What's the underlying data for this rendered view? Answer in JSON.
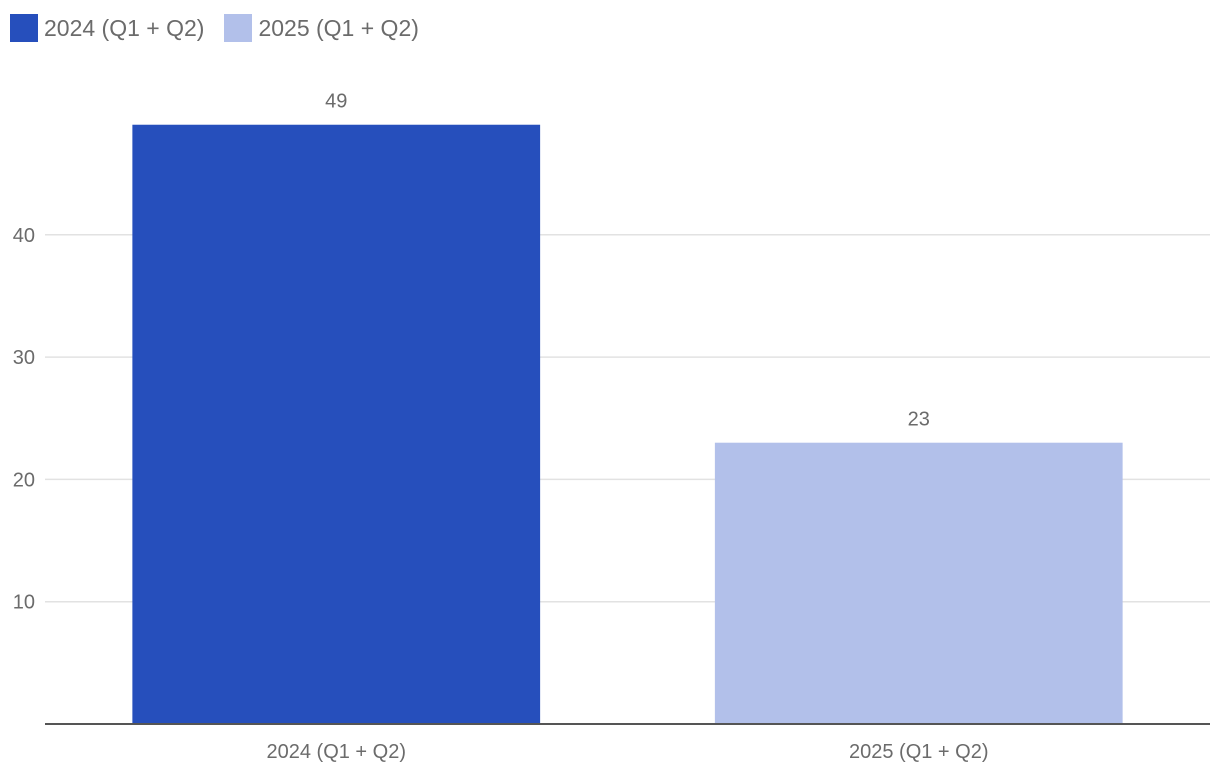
{
  "chart_data": {
    "type": "bar",
    "categories": [
      "2024 (Q1 + Q2)",
      "2025 (Q1 + Q2)"
    ],
    "values": [
      49,
      23
    ],
    "colors": [
      "#264fbc",
      "#b2c0ea"
    ],
    "legend": [
      {
        "label": "2024 (Q1 + Q2)",
        "color": "#264fbc"
      },
      {
        "label": "2025 (Q1 + Q2)",
        "color": "#b2c0ea"
      }
    ],
    "legend_position": "top-left",
    "yticks": [
      10,
      20,
      30,
      40
    ],
    "ylim": [
      0,
      52
    ],
    "grid": true,
    "title": "",
    "xlabel": "",
    "ylabel": ""
  }
}
